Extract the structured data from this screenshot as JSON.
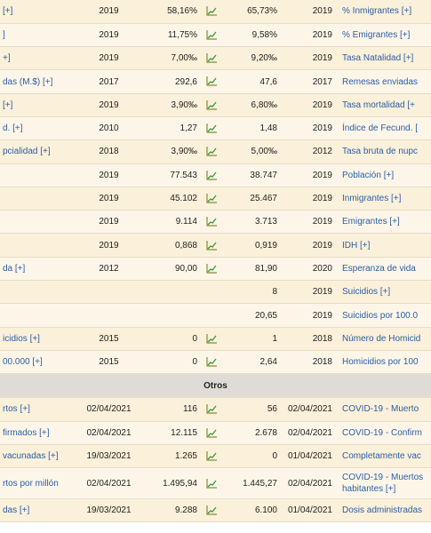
{
  "rows_top": [
    {
      "label": "[+]",
      "year": "2019",
      "value": "58,16%",
      "world": "65,73%",
      "year2": "2019",
      "rlabel": "% Inmigrantes [+]"
    },
    {
      "label": "]",
      "year": "2019",
      "value": "11,75%",
      "world": "9,58%",
      "year2": "2019",
      "rlabel": "% Emigrantes [+]"
    },
    {
      "label": "+]",
      "year": "2019",
      "value": "7,00‰",
      "world": "9,20‰",
      "year2": "2019",
      "rlabel": "Tasa Natalidad [+]"
    },
    {
      "label": "das (M.$) [+]",
      "year": "2017",
      "value": "292,6",
      "world": "47,6",
      "year2": "2017",
      "rlabel": "Remesas enviadas"
    },
    {
      "label": "[+]",
      "year": "2019",
      "value": "3,90‰",
      "world": "6,80‰",
      "year2": "2019",
      "rlabel": "Tasa mortalidad [+"
    },
    {
      "label": "d. [+]",
      "year": "2010",
      "value": "1,27",
      "world": "1,48",
      "year2": "2019",
      "rlabel": "Índice de Fecund. ["
    },
    {
      "label": "pcialidad [+]",
      "year": "2018",
      "value": "3,90‰",
      "world": "5,00‰",
      "year2": "2012",
      "rlabel": "Tasa bruta de nupc"
    },
    {
      "label": "",
      "year": "2019",
      "value": "77.543",
      "world": "38.747",
      "year2": "2019",
      "rlabel": "Población [+]"
    },
    {
      "label": "",
      "year": "2019",
      "value": "45.102",
      "world": "25.467",
      "year2": "2019",
      "rlabel": "Inmigrantes [+]"
    },
    {
      "label": "",
      "year": "2019",
      "value": "9.114",
      "world": "3.713",
      "year2": "2019",
      "rlabel": "Emigrantes [+]"
    },
    {
      "label": "",
      "year": "2019",
      "value": "0,868",
      "world": "0,919",
      "year2": "2019",
      "rlabel": "IDH [+]"
    },
    {
      "label": "da [+]",
      "year": "2012",
      "value": "90,00",
      "world": "81,90",
      "year2": "2020",
      "rlabel": "Esperanza de vida"
    },
    {
      "label": "",
      "year": "",
      "value": "",
      "world": "8",
      "year2": "2019",
      "rlabel": "Suicidios [+]",
      "noicon": true
    },
    {
      "label": "",
      "year": "",
      "value": "",
      "world": "20,65",
      "year2": "2019",
      "rlabel": "Suicidios por 100.0",
      "noicon": true
    },
    {
      "label": "icidios [+]",
      "year": "2015",
      "value": "0",
      "world": "1",
      "year2": "2018",
      "rlabel": "Número de Homicid"
    },
    {
      "label": "00.000 [+]",
      "year": "2015",
      "value": "0",
      "world": "2,64",
      "year2": "2018",
      "rlabel": "Homicidios por 100"
    }
  ],
  "section_title": "Otros",
  "rows_bottom": [
    {
      "label": "rtos [+]",
      "year": "02/04/2021",
      "value": "116",
      "world": "56",
      "year2": "02/04/2021",
      "rlabel": "COVID-19 - Muerto"
    },
    {
      "label": "firmados [+]",
      "year": "02/04/2021",
      "value": "12.115",
      "world": "2.678",
      "year2": "02/04/2021",
      "rlabel": "COVID-19 - Confirm"
    },
    {
      "label": "vacunadas [+]",
      "year": "19/03/2021",
      "value": "1.265",
      "world": "0",
      "year2": "01/04/2021",
      "rlabel": "Completamente vac"
    },
    {
      "label": "rtos por millón",
      "year": "02/04/2021",
      "value": "1.495,94",
      "world": "1.445,27",
      "year2": "02/04/2021",
      "rlabel": "COVID-19 - Muertos habitantes [+]",
      "tall": true
    },
    {
      "label": "das [+]",
      "year": "19/03/2021",
      "value": "9.288",
      "world": "6.100",
      "year2": "01/04/2021",
      "rlabel": "Dosis administradas"
    }
  ]
}
